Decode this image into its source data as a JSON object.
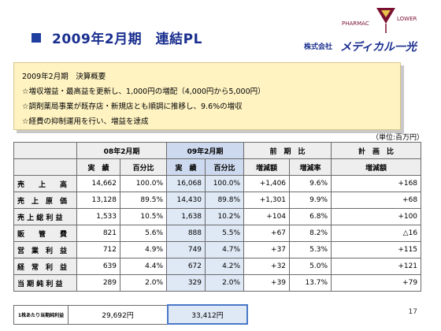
{
  "title": "2009年2月期　連結PL",
  "logo": {
    "brand_left": "PHARMAC",
    "brand_right": "LOWER",
    "company_prefix": "株式会社",
    "company_name": "メディカル一光",
    "mark_color": "#7a1030"
  },
  "summary": {
    "lines": [
      "2009年2月期　決算概要",
      "☆増収増益・最高益を更新し、1,000円の増配（4,000円から5,000円）",
      "☆調剤薬局事業が既存店・新規店とも順調に推移し、9.6%の増収",
      "☆経費の抑制運用を行い、増益を達成"
    ]
  },
  "unit_label": "（単位:百万円）",
  "table": {
    "group_headers": {
      "fy08": "08年2月期",
      "fy09": "09年2月期",
      "yoy": "前　期　比",
      "plan": "計　画　比"
    },
    "sub_headers": [
      "実　績",
      "百分比",
      "実　績",
      "百分比",
      "増減額",
      "増減率",
      "増減額"
    ],
    "rows": [
      {
        "label": "売　　上　　高",
        "v08": "14,662",
        "p08": "100.0%",
        "v09": "16,068",
        "p09": "100.0%",
        "diff": "+1,406",
        "rate": "9.6%",
        "plan": "+168"
      },
      {
        "label": "売　上　原　価",
        "v08": "13,128",
        "p08": "89.5%",
        "v09": "14,430",
        "p09": "89.8%",
        "diff": "+1,301",
        "rate": "9.9%",
        "plan": "+68"
      },
      {
        "label": "売 上 総 利 益",
        "v08": "1,533",
        "p08": "10.5%",
        "v09": "1,638",
        "p09": "10.2%",
        "diff": "+104",
        "rate": "6.8%",
        "plan": "+100"
      },
      {
        "label": "販　　管　　費",
        "v08": "821",
        "p08": "5.6%",
        "v09": "888",
        "p09": "5.5%",
        "diff": "+67",
        "rate": "8.2%",
        "plan": "△16"
      },
      {
        "label": "営　業　利　益",
        "v08": "712",
        "p08": "4.9%",
        "v09": "749",
        "p09": "4.7%",
        "diff": "+37",
        "rate": "5.3%",
        "plan": "+115"
      },
      {
        "label": "経　常　利　益",
        "v08": "639",
        "p08": "4.4%",
        "v09": "672",
        "p09": "4.2%",
        "diff": "+32",
        "rate": "5.0%",
        "plan": "+121"
      },
      {
        "label": "当 期 純 利 益",
        "v08": "289",
        "p08": "2.0%",
        "v09": "329",
        "p09": "2.0%",
        "diff": "+39",
        "rate": "13.7%",
        "plan": "+79"
      }
    ]
  },
  "eps": {
    "label": "1株あたり当期純利益",
    "fy08": "29,692円",
    "fy09": "33,412円"
  },
  "page_number": "17"
}
